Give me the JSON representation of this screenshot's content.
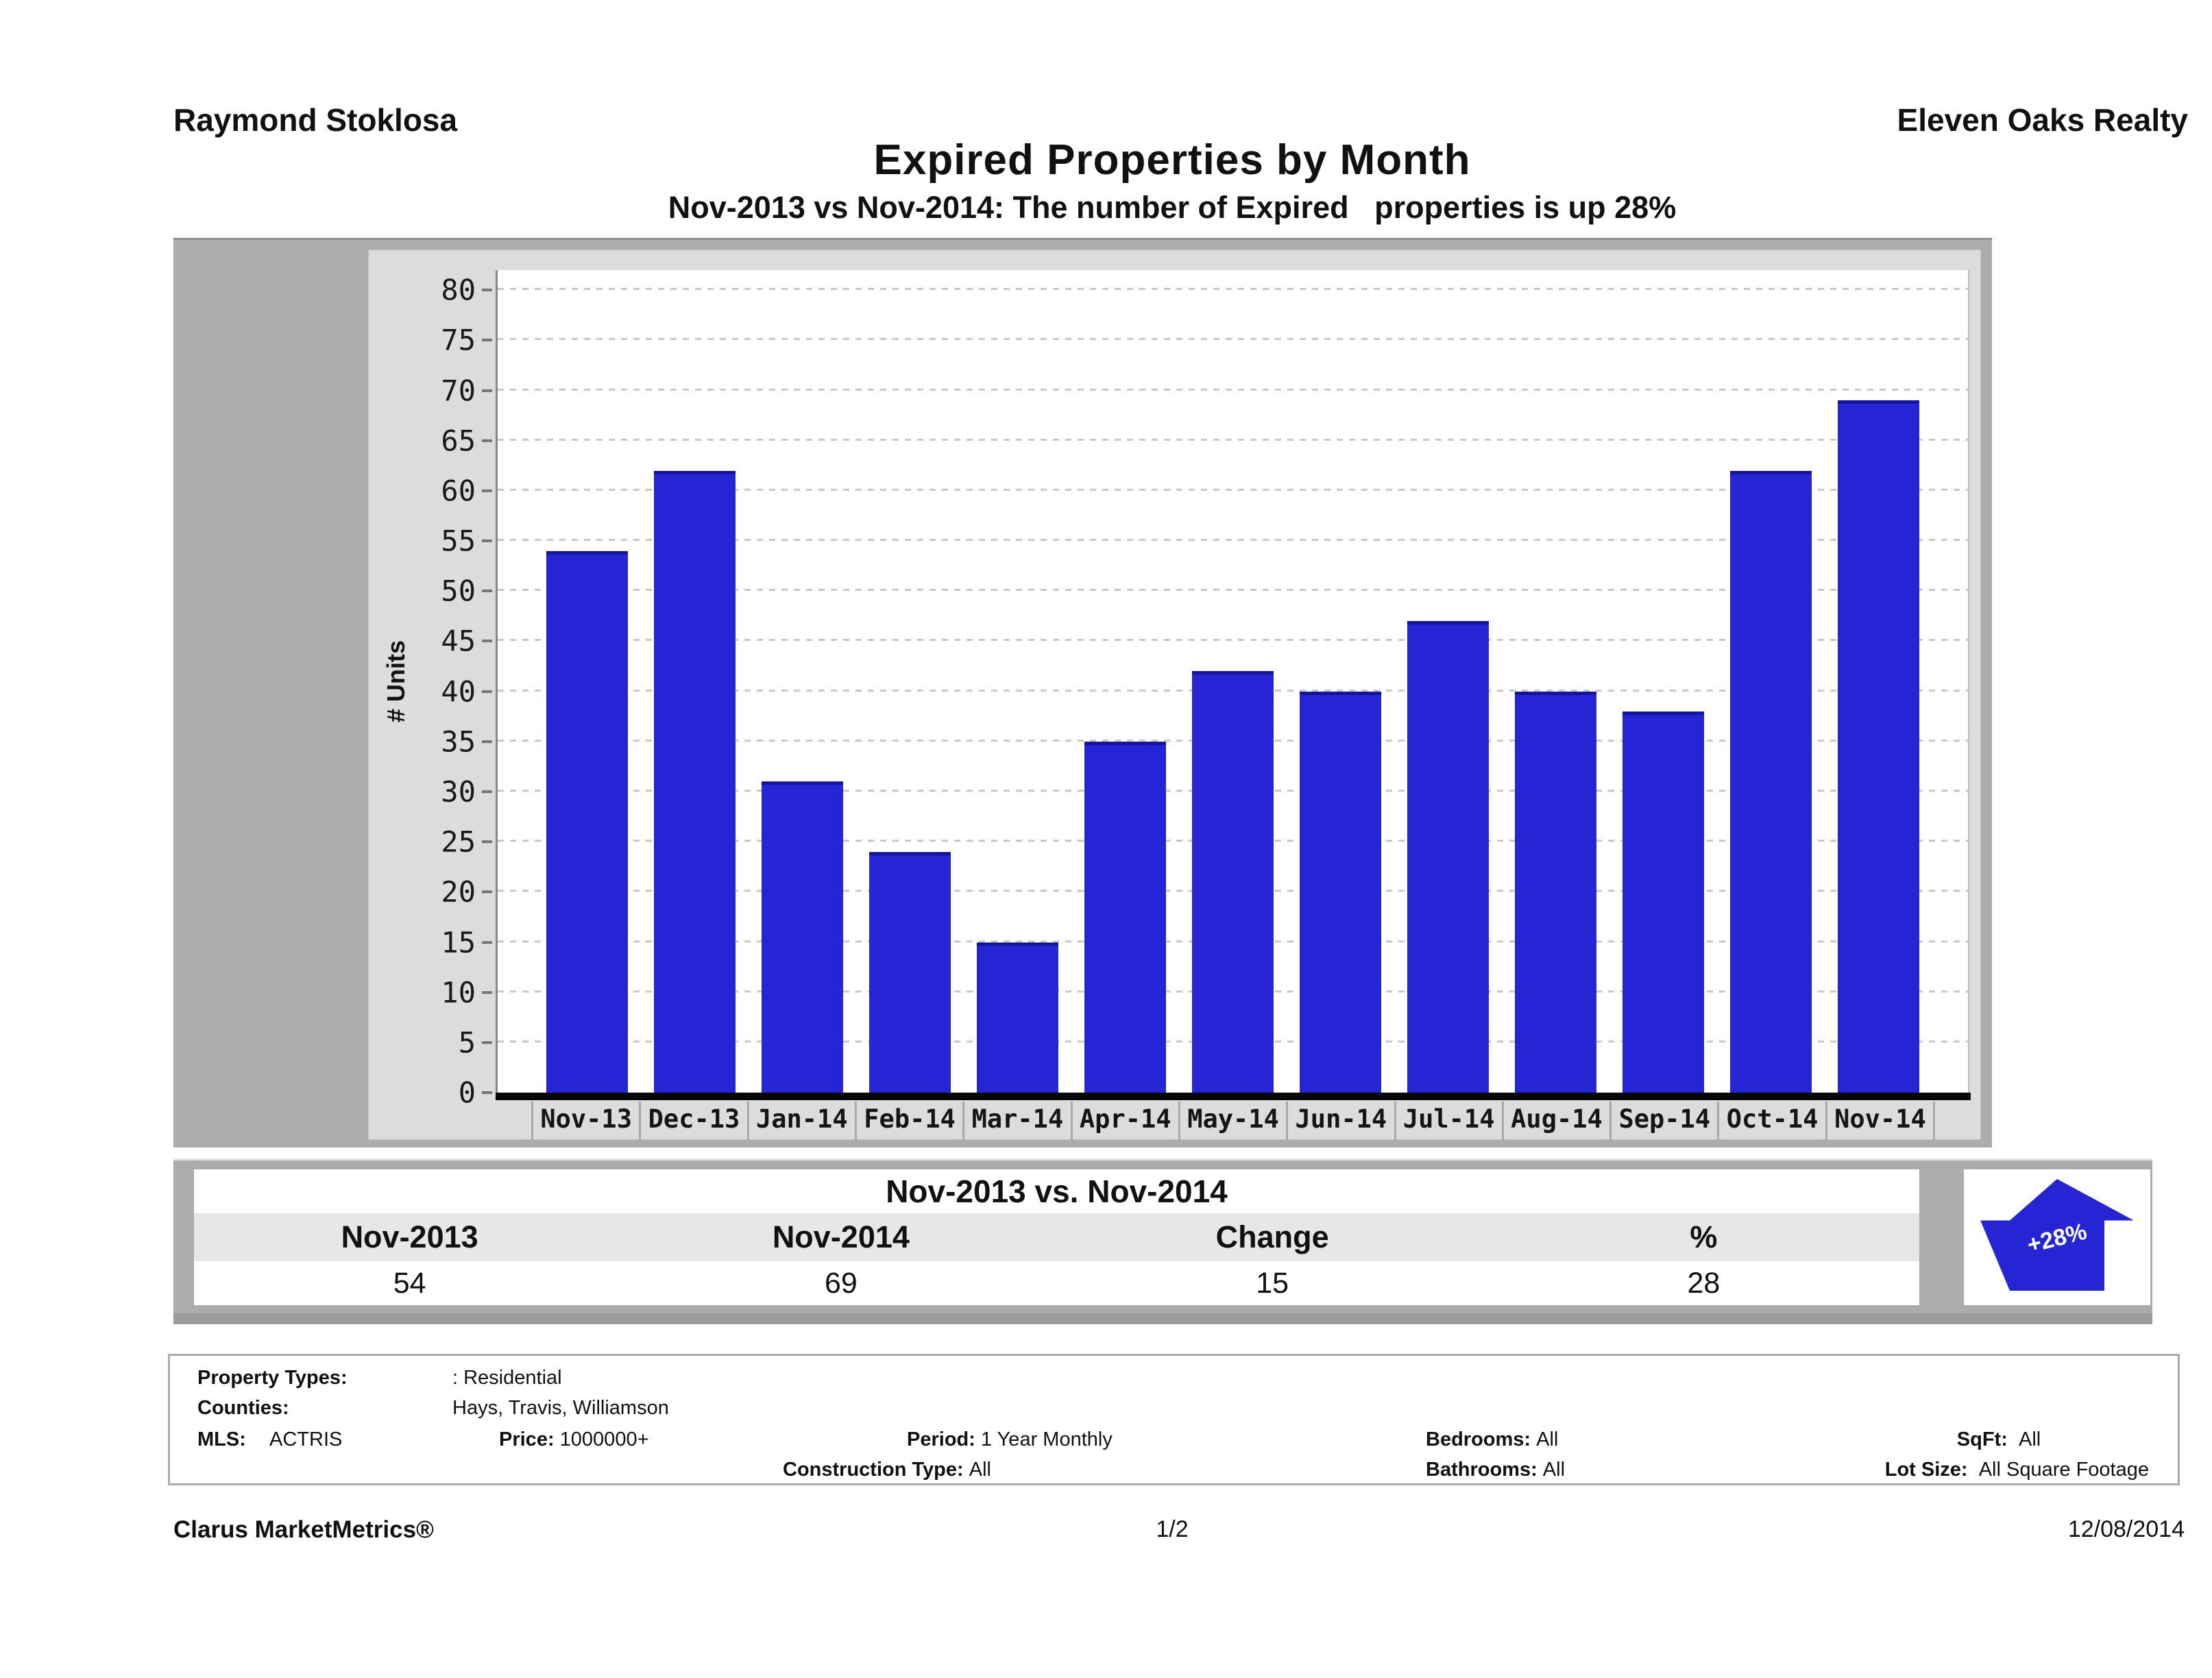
{
  "header": {
    "agent": "Raymond Stoklosa",
    "company": "Eleven Oaks Realty"
  },
  "title": "Expired Properties by Month",
  "subtitle": "Nov-2013 vs Nov-2014: The number of Expired   properties is up 28%",
  "chart_data": {
    "type": "bar",
    "categories": [
      "Nov-13",
      "Dec-13",
      "Jan-14",
      "Feb-14",
      "Mar-14",
      "Apr-14",
      "May-14",
      "Jun-14",
      "Jul-14",
      "Aug-14",
      "Sep-14",
      "Oct-14",
      "Nov-14"
    ],
    "values": [
      54,
      62,
      31,
      24,
      15,
      35,
      42,
      40,
      47,
      40,
      38,
      62,
      69
    ],
    "title": "Expired Properties by Month",
    "xlabel": "",
    "ylabel": "# Units",
    "ylim": [
      0,
      80
    ],
    "ytick_step": 5,
    "axis_headroom_max": 82,
    "grid": true,
    "legend": "none",
    "bar_color": "#2525d6"
  },
  "summary": {
    "title": "Nov-2013 vs. Nov-2014",
    "columns": [
      "Nov-2013",
      "Nov-2014",
      "Change",
      "%"
    ],
    "values": [
      "54",
      "69",
      "15",
      "28"
    ],
    "badge": "+28%",
    "badge_color": "#2525d6"
  },
  "criteria": {
    "property_types_label": "Property Types:",
    "property_types_value": ": Residential",
    "counties_label": "Counties:",
    "counties_value": "Hays, Travis, Williamson",
    "mls_label": "MLS:",
    "mls_value": "ACTRIS",
    "price_label": "Price:",
    "price_value": "1000000+",
    "period_label": "Period:",
    "period_value": "1 Year Monthly",
    "bedrooms_label": "Bedrooms:",
    "bedrooms_value": "All",
    "sqft_label": "SqFt:",
    "sqft_value": "All",
    "construction_label": "Construction Type:",
    "construction_value": "All",
    "bathrooms_label": "Bathrooms:",
    "bathrooms_value": "All",
    "lot_label": "Lot Size:",
    "lot_value": "All Square Footage"
  },
  "footer": {
    "brand": "Clarus MarketMetrics®",
    "page": "1/2",
    "date": "12/08/2014"
  }
}
